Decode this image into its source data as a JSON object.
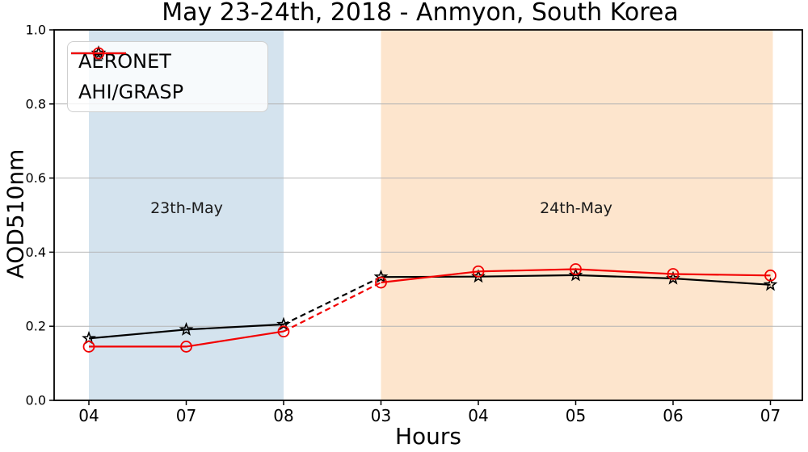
{
  "chart_data": {
    "type": "line",
    "title": "May 23-24th, 2018 - Anmyon, South Korea",
    "xlabel": "Hours",
    "ylabel": "AOD510nm",
    "x_tick_labels": [
      "04",
      "07",
      "08",
      "03",
      "04",
      "05",
      "06",
      "07"
    ],
    "y_ticks": [
      0.0,
      0.2,
      0.4,
      0.6,
      0.8,
      1.0
    ],
    "y_tick_labels": [
      "0.0",
      "0.2",
      "0.4",
      "0.6",
      "0.8",
      "1.0"
    ],
    "ylim": [
      0.0,
      1.0
    ],
    "grid": "horizontal-only",
    "grid_color": "#b4b4b4",
    "legend_position": "upper-left",
    "series": [
      {
        "name": "AERONET",
        "color": "#000000",
        "marker": "star",
        "values": [
          0.167,
          0.191,
          0.205,
          0.333,
          0.334,
          0.338,
          0.329,
          0.312
        ]
      },
      {
        "name": "AHI/GRASP",
        "color": "#f20202",
        "marker": "circle",
        "values": [
          0.145,
          0.145,
          0.186,
          0.318,
          0.348,
          0.354,
          0.341,
          0.337
        ]
      }
    ],
    "dashed_gap_between_indices": [
      2,
      3
    ],
    "regions": [
      {
        "label": "23th-May",
        "from_index": 0,
        "to_index": 2,
        "color": "#d4e3ee"
      },
      {
        "label": "24th-May",
        "from_index": 3,
        "to_index": 7,
        "color": "#fde5cd"
      }
    ]
  }
}
